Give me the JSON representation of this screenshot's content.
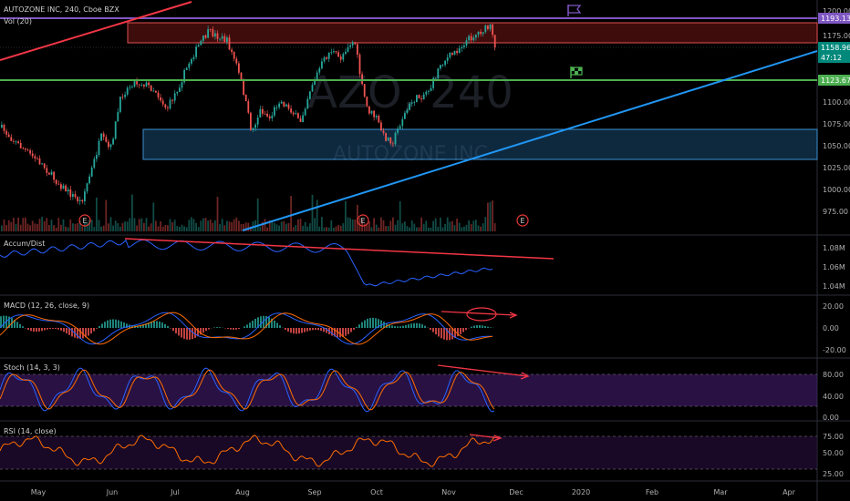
{
  "header": {
    "symbol_line": "AUTOZONE INC, 240, Cboe BZX",
    "volume_label": "Vol (20)"
  },
  "watermark": {
    "ticker": "AZO, 240",
    "company": "AUTOZONE INC"
  },
  "colors": {
    "background": "#000000",
    "up": "#26a69a",
    "down": "#ef5350",
    "purple_line": "#7e57c2",
    "green_line": "#4caf50",
    "blue_trend": "#2196f3",
    "red_trend": "#f23645",
    "resistance_zone": "#8b1a1a",
    "support_zone": "#1e5a8a",
    "series_blue": "#2962ff",
    "series_orange": "#ff6d00"
  },
  "price_axis": {
    "ticks": [
      "1200.00",
      "1175.00",
      "1150.00",
      "1125.00",
      "1100.00",
      "1075.00",
      "1050.00",
      "1025.00",
      "1000.00",
      "975.00"
    ],
    "badges": [
      {
        "value": "1193.13",
        "color": "#7e57c2"
      },
      {
        "value": "1158.96",
        "color": "#00897b"
      },
      {
        "value": "47:12",
        "color": "#00897b"
      },
      {
        "value": "1123.67",
        "color": "#4caf50"
      }
    ]
  },
  "time_axis": {
    "labels": [
      "May",
      "Jun",
      "Jul",
      "Aug",
      "Sep",
      "Oct",
      "Nov",
      "Dec",
      "2020",
      "Feb",
      "Mar",
      "Apr"
    ]
  },
  "event_marker": "E",
  "panes": {
    "accum": {
      "title": "Accum/Dist",
      "ticks": [
        "1.08M",
        "1.06M",
        "1.04M"
      ]
    },
    "macd": {
      "title": "MACD (12, 26, close, 9)",
      "ticks": [
        "20.00",
        "0.00",
        "-20.00"
      ]
    },
    "stoch": {
      "title": "Stoch (14, 3, 3)",
      "ticks": [
        "80.00",
        "40.00",
        "0.00"
      ]
    },
    "rsi": {
      "title": "RSI (14, close)",
      "ticks": [
        "75.00",
        "50.00",
        "25.00"
      ]
    }
  }
}
